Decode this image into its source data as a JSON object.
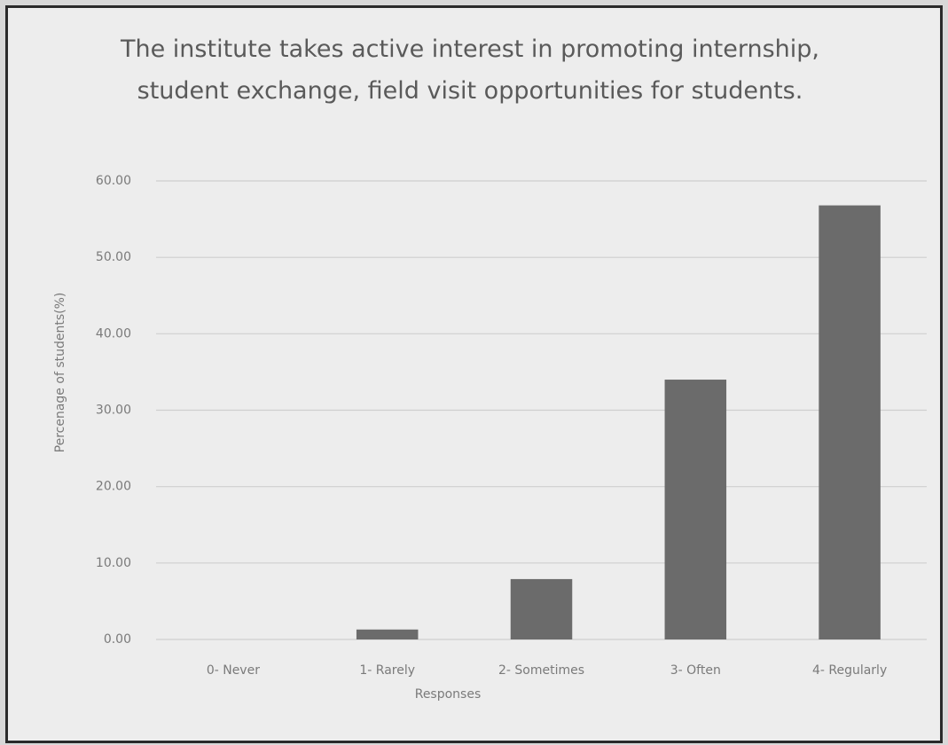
{
  "chart_data": {
    "type": "bar",
    "title": "The institute takes active interest in promoting internship, student exchange, field visit opportunities for students.",
    "x_label": "Responses",
    "y_label": "Percenage of students(%)",
    "categories": [
      "0- Never",
      "1- Rarely",
      "2- Sometimes",
      "3- Often",
      "4- Regularly"
    ],
    "values": [
      0,
      1.3,
      7.9,
      34.0,
      56.8
    ],
    "color": "#6b6b6b",
    "ylim": [
      0,
      60
    ],
    "yticks": [
      {
        "value": 0,
        "label": "0.00"
      },
      {
        "value": 10,
        "label": "10.00"
      },
      {
        "value": 20,
        "label": "20.00"
      },
      {
        "value": 30,
        "label": "30.00"
      },
      {
        "value": 40,
        "label": "40.00"
      },
      {
        "value": 50,
        "label": "50.00"
      },
      {
        "value": 60,
        "label": "60.00"
      }
    ],
    "grid": true
  }
}
